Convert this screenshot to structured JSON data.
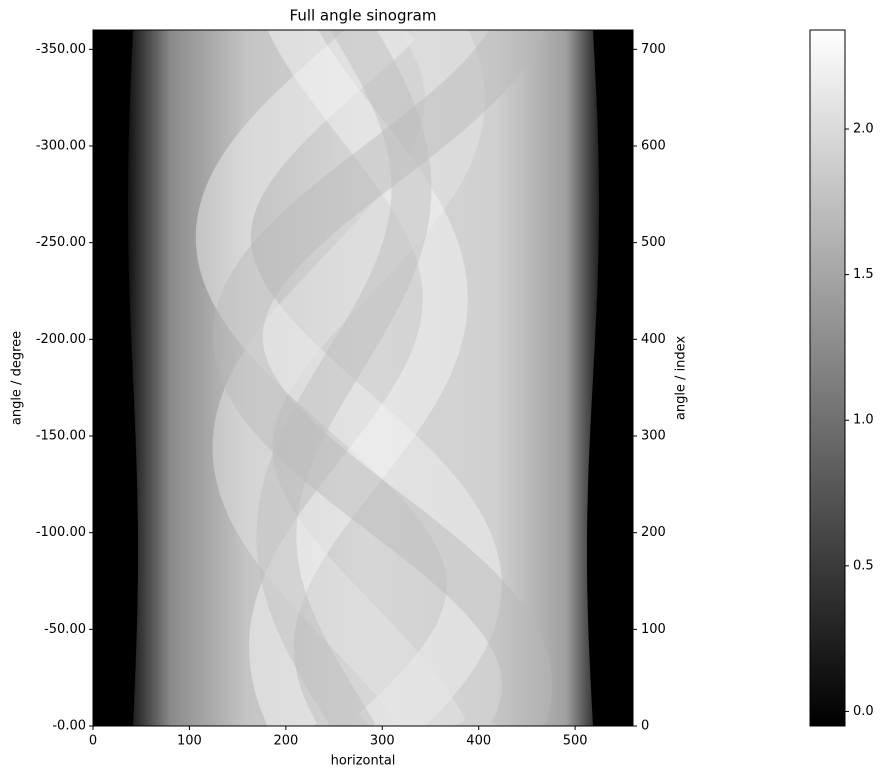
{
  "chart_data": {
    "type": "image",
    "title": "Full angle sinogram",
    "x_label": "horizontal",
    "y_label": "angle / degree",
    "y2_label": "angle / index",
    "xlim": [
      0,
      560
    ],
    "xticks": [
      0,
      100,
      200,
      300,
      400,
      500
    ],
    "ylim": [
      0,
      -360
    ],
    "yticks": [
      {
        "value": 0,
        "label": "-0.00"
      },
      {
        "value": -50,
        "label": "-50.00"
      },
      {
        "value": -100,
        "label": "-100.00"
      },
      {
        "value": -150,
        "label": "-150.00"
      },
      {
        "value": -200,
        "label": "-200.00"
      },
      {
        "value": -250,
        "label": "-250.00"
      },
      {
        "value": -300,
        "label": "-300.00"
      },
      {
        "value": -350,
        "label": "-350.00"
      }
    ],
    "y2lim": [
      0,
      720
    ],
    "y2ticks": [
      0,
      100,
      200,
      300,
      400,
      500,
      600,
      700
    ],
    "colorbar": {
      "lim": [
        -0.05,
        2.34
      ],
      "ticks": [
        {
          "value": 0,
          "label": "0.0"
        },
        0.5,
        {
          "value": 1,
          "label": "1.0"
        },
        1.5,
        {
          "value": 2,
          "label": "2.0"
        }
      ]
    }
  }
}
